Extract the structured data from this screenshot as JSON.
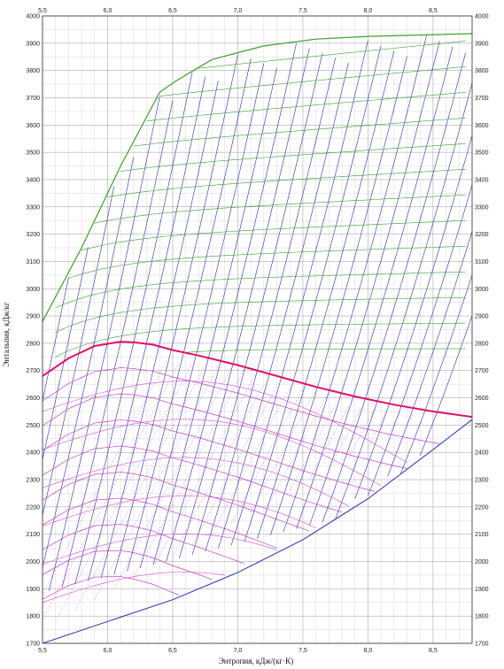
{
  "chart_data": {
    "type": "line",
    "xlabel": "Энтропия, кДж/(кг·К)",
    "ylabel": "Энтальпия, кДж/кг",
    "xlim": [
      5.5,
      8.8
    ],
    "ylim": [
      1700,
      4000
    ],
    "x_ticks": [
      "5,5",
      "6,0",
      "6,5",
      "7,0",
      "7,5",
      "8,0",
      "8,5"
    ],
    "x_tick_values": [
      5.5,
      6.0,
      6.5,
      7.0,
      7.5,
      8.0,
      8.5
    ],
    "y_ticks": [
      "1700",
      "1800",
      "1900",
      "2000",
      "2100",
      "2200",
      "2300",
      "2400",
      "2500",
      "2600",
      "2700",
      "2800",
      "2900",
      "3000",
      "3100",
      "3200",
      "3300",
      "3400",
      "3500",
      "3600",
      "3700",
      "3800",
      "3900",
      "4000"
    ],
    "y_tick_values": [
      1700,
      1800,
      1900,
      2000,
      2100,
      2200,
      2300,
      2400,
      2500,
      2600,
      2700,
      2800,
      2900,
      3000,
      3100,
      3200,
      3300,
      3400,
      3500,
      3600,
      3700,
      3800,
      3900,
      4000
    ],
    "grid": true,
    "colors": {
      "isobar": "#2a2ab8",
      "isotherm": "#3aa02a",
      "saturation": "#e0106a",
      "wet_dryness": "#c21fc2",
      "wet_isotherm": "#d24fd2",
      "grid": "#9a9a9a"
    },
    "series": [
      {
        "kind": "saturation_line",
        "x": [
          5.5,
          5.7,
          5.9,
          6.1,
          6.2,
          6.35,
          6.5,
          6.7,
          7.0,
          7.3,
          7.6,
          7.9,
          8.2,
          8.5,
          8.8
        ],
        "y": [
          2680,
          2745,
          2790,
          2806,
          2804,
          2795,
          2775,
          2755,
          2720,
          2680,
          2640,
          2605,
          2575,
          2550,
          2530
        ]
      },
      {
        "kind": "upper_envelope",
        "x": [
          5.5,
          5.8,
          6.1,
          6.4,
          6.52,
          6.8,
          7.2,
          7.6,
          8.0,
          8.4,
          8.8
        ],
        "y": [
          2880,
          3150,
          3450,
          3720,
          3760,
          3840,
          3890,
          3915,
          3925,
          3930,
          3935
        ]
      },
      {
        "kind": "lower_envelope",
        "x": [
          5.5,
          6.0,
          6.5,
          7.0,
          7.5,
          8.0,
          8.5,
          8.8
        ],
        "y": [
          1700,
          1780,
          1860,
          1960,
          2080,
          2230,
          2410,
          2520
        ]
      }
    ]
  }
}
